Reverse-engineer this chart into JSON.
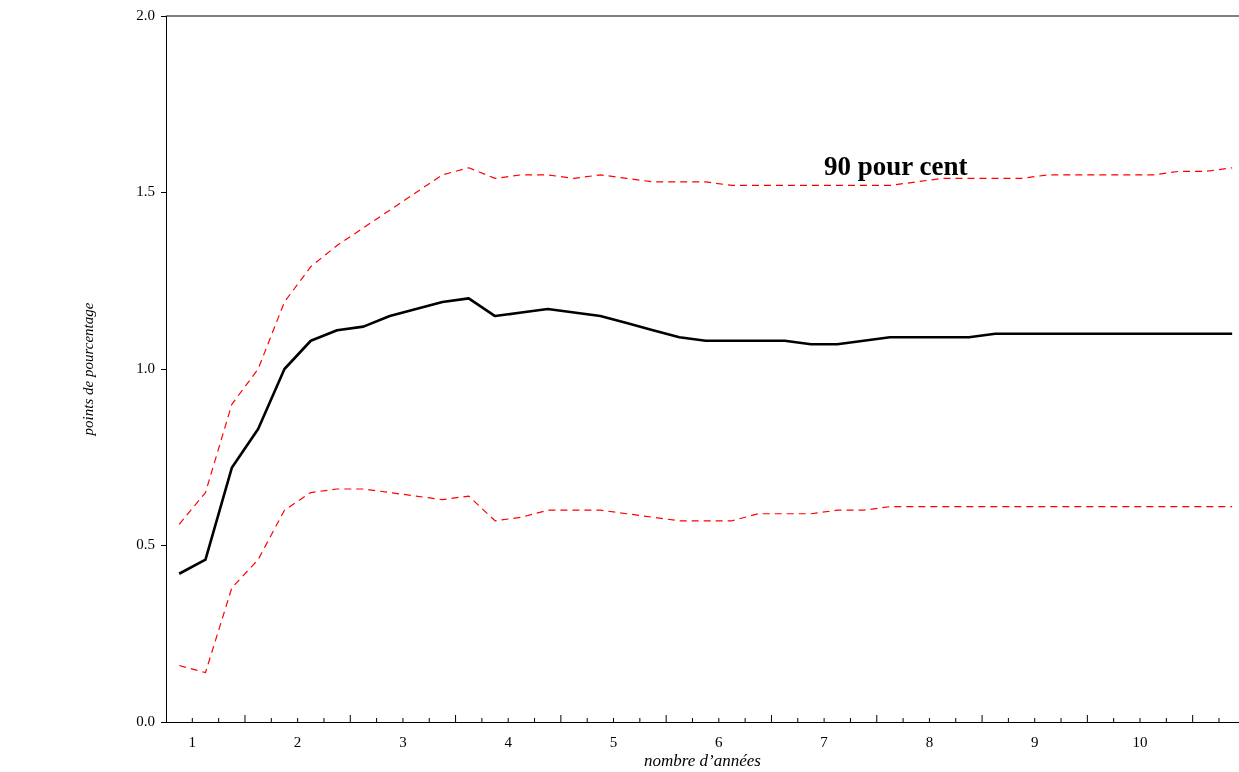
{
  "chart_data": {
    "type": "line",
    "xlabel": "nombre d’années",
    "ylabel": "points de pourcentage",
    "x": [
      0.875,
      1.125,
      1.375,
      1.625,
      1.875,
      2.125,
      2.375,
      2.625,
      2.875,
      3.125,
      3.375,
      3.625,
      3.875,
      4.125,
      4.375,
      4.625,
      4.875,
      5.125,
      5.375,
      5.625,
      5.875,
      6.125,
      6.375,
      6.625,
      6.875,
      7.125,
      7.375,
      7.625,
      7.875,
      8.125,
      8.375,
      8.625,
      8.875,
      9.125,
      9.375,
      9.625,
      9.875,
      10.125,
      10.375,
      10.625,
      10.875
    ],
    "series": [
      {
        "color": "#000000",
        "line_style": "solid",
        "values": [
          0.42,
          0.46,
          0.72,
          0.83,
          1.0,
          1.08,
          1.11,
          1.12,
          1.15,
          1.17,
          1.19,
          1.2,
          1.15,
          1.16,
          1.17,
          1.16,
          1.15,
          1.13,
          1.11,
          1.09,
          1.08,
          1.08,
          1.08,
          1.08,
          1.07,
          1.07,
          1.08,
          1.09,
          1.09,
          1.09,
          1.09,
          1.1,
          1.1,
          1.1,
          1.1,
          1.1,
          1.1,
          1.1,
          1.1,
          1.1,
          1.1
        ]
      },
      {
        "color": "#ff0000",
        "line_style": "dashed",
        "values": [
          0.56,
          0.65,
          0.9,
          1.0,
          1.19,
          1.29,
          1.35,
          1.4,
          1.45,
          1.5,
          1.55,
          1.57,
          1.54,
          1.55,
          1.55,
          1.54,
          1.55,
          1.54,
          1.53,
          1.53,
          1.53,
          1.52,
          1.52,
          1.52,
          1.52,
          1.52,
          1.52,
          1.52,
          1.53,
          1.54,
          1.54,
          1.54,
          1.54,
          1.55,
          1.55,
          1.55,
          1.55,
          1.55,
          1.56,
          1.56,
          1.57
        ]
      },
      {
        "color": "#ff0000",
        "line_style": "dashed",
        "values": [
          0.16,
          0.14,
          0.38,
          0.46,
          0.6,
          0.65,
          0.66,
          0.66,
          0.65,
          0.64,
          0.63,
          0.64,
          0.57,
          0.58,
          0.6,
          0.6,
          0.6,
          0.59,
          0.58,
          0.57,
          0.57,
          0.57,
          0.59,
          0.59,
          0.59,
          0.6,
          0.6,
          0.61,
          0.61,
          0.61,
          0.61,
          0.61,
          0.61,
          0.61,
          0.61,
          0.61,
          0.61,
          0.61,
          0.61,
          0.61,
          0.61
        ]
      }
    ],
    "xlim": [
      0.75,
      10.94
    ],
    "xticks": [
      {
        "value": 1,
        "label": "1"
      },
      {
        "value": 1.25,
        "label": null
      },
      {
        "value": 1.5,
        "label": null
      },
      {
        "value": 1.75,
        "label": null
      },
      {
        "value": 2,
        "label": "2"
      },
      {
        "value": 2.25,
        "label": null
      },
      {
        "value": 2.5,
        "label": null
      },
      {
        "value": 2.75,
        "label": null
      },
      {
        "value": 3,
        "label": "3"
      },
      {
        "value": 3.25,
        "label": null
      },
      {
        "value": 3.5,
        "label": null
      },
      {
        "value": 3.75,
        "label": null
      },
      {
        "value": 4,
        "label": "4"
      },
      {
        "value": 4.25,
        "label": null
      },
      {
        "value": 4.5,
        "label": null
      },
      {
        "value": 4.75,
        "label": null
      },
      {
        "value": 5,
        "label": "5"
      },
      {
        "value": 5.25,
        "label": null
      },
      {
        "value": 5.5,
        "label": null
      },
      {
        "value": 5.75,
        "label": null
      },
      {
        "value": 6,
        "label": "6"
      },
      {
        "value": 6.25,
        "label": null
      },
      {
        "value": 6.5,
        "label": null
      },
      {
        "value": 6.75,
        "label": null
      },
      {
        "value": 7,
        "label": "7"
      },
      {
        "value": 7.25,
        "label": null
      },
      {
        "value": 7.5,
        "label": null
      },
      {
        "value": 7.75,
        "label": null
      },
      {
        "value": 8,
        "label": "8"
      },
      {
        "value": 8.25,
        "label": null
      },
      {
        "value": 8.5,
        "label": null
      },
      {
        "value": 8.75,
        "label": null
      },
      {
        "value": 9,
        "label": "9"
      },
      {
        "value": 9.25,
        "label": null
      },
      {
        "value": 9.5,
        "label": null
      },
      {
        "value": 9.75,
        "label": null
      },
      {
        "value": 10,
        "label": "10"
      },
      {
        "value": 10.25,
        "label": null
      },
      {
        "value": 10.5,
        "label": null
      },
      {
        "value": 10.75,
        "label": null
      }
    ],
    "ylim": [
      0,
      2
    ],
    "yticks": [
      {
        "value": 0,
        "label": "0.0"
      },
      {
        "value": 0.5,
        "label": "0.5"
      },
      {
        "value": 1,
        "label": "1.0"
      },
      {
        "value": 1.5,
        "label": "1.5"
      },
      {
        "value": 2,
        "label": "2.0"
      }
    ],
    "grid": false,
    "legend": false,
    "marker": "none",
    "annotations": [
      "90 pour cent"
    ]
  }
}
